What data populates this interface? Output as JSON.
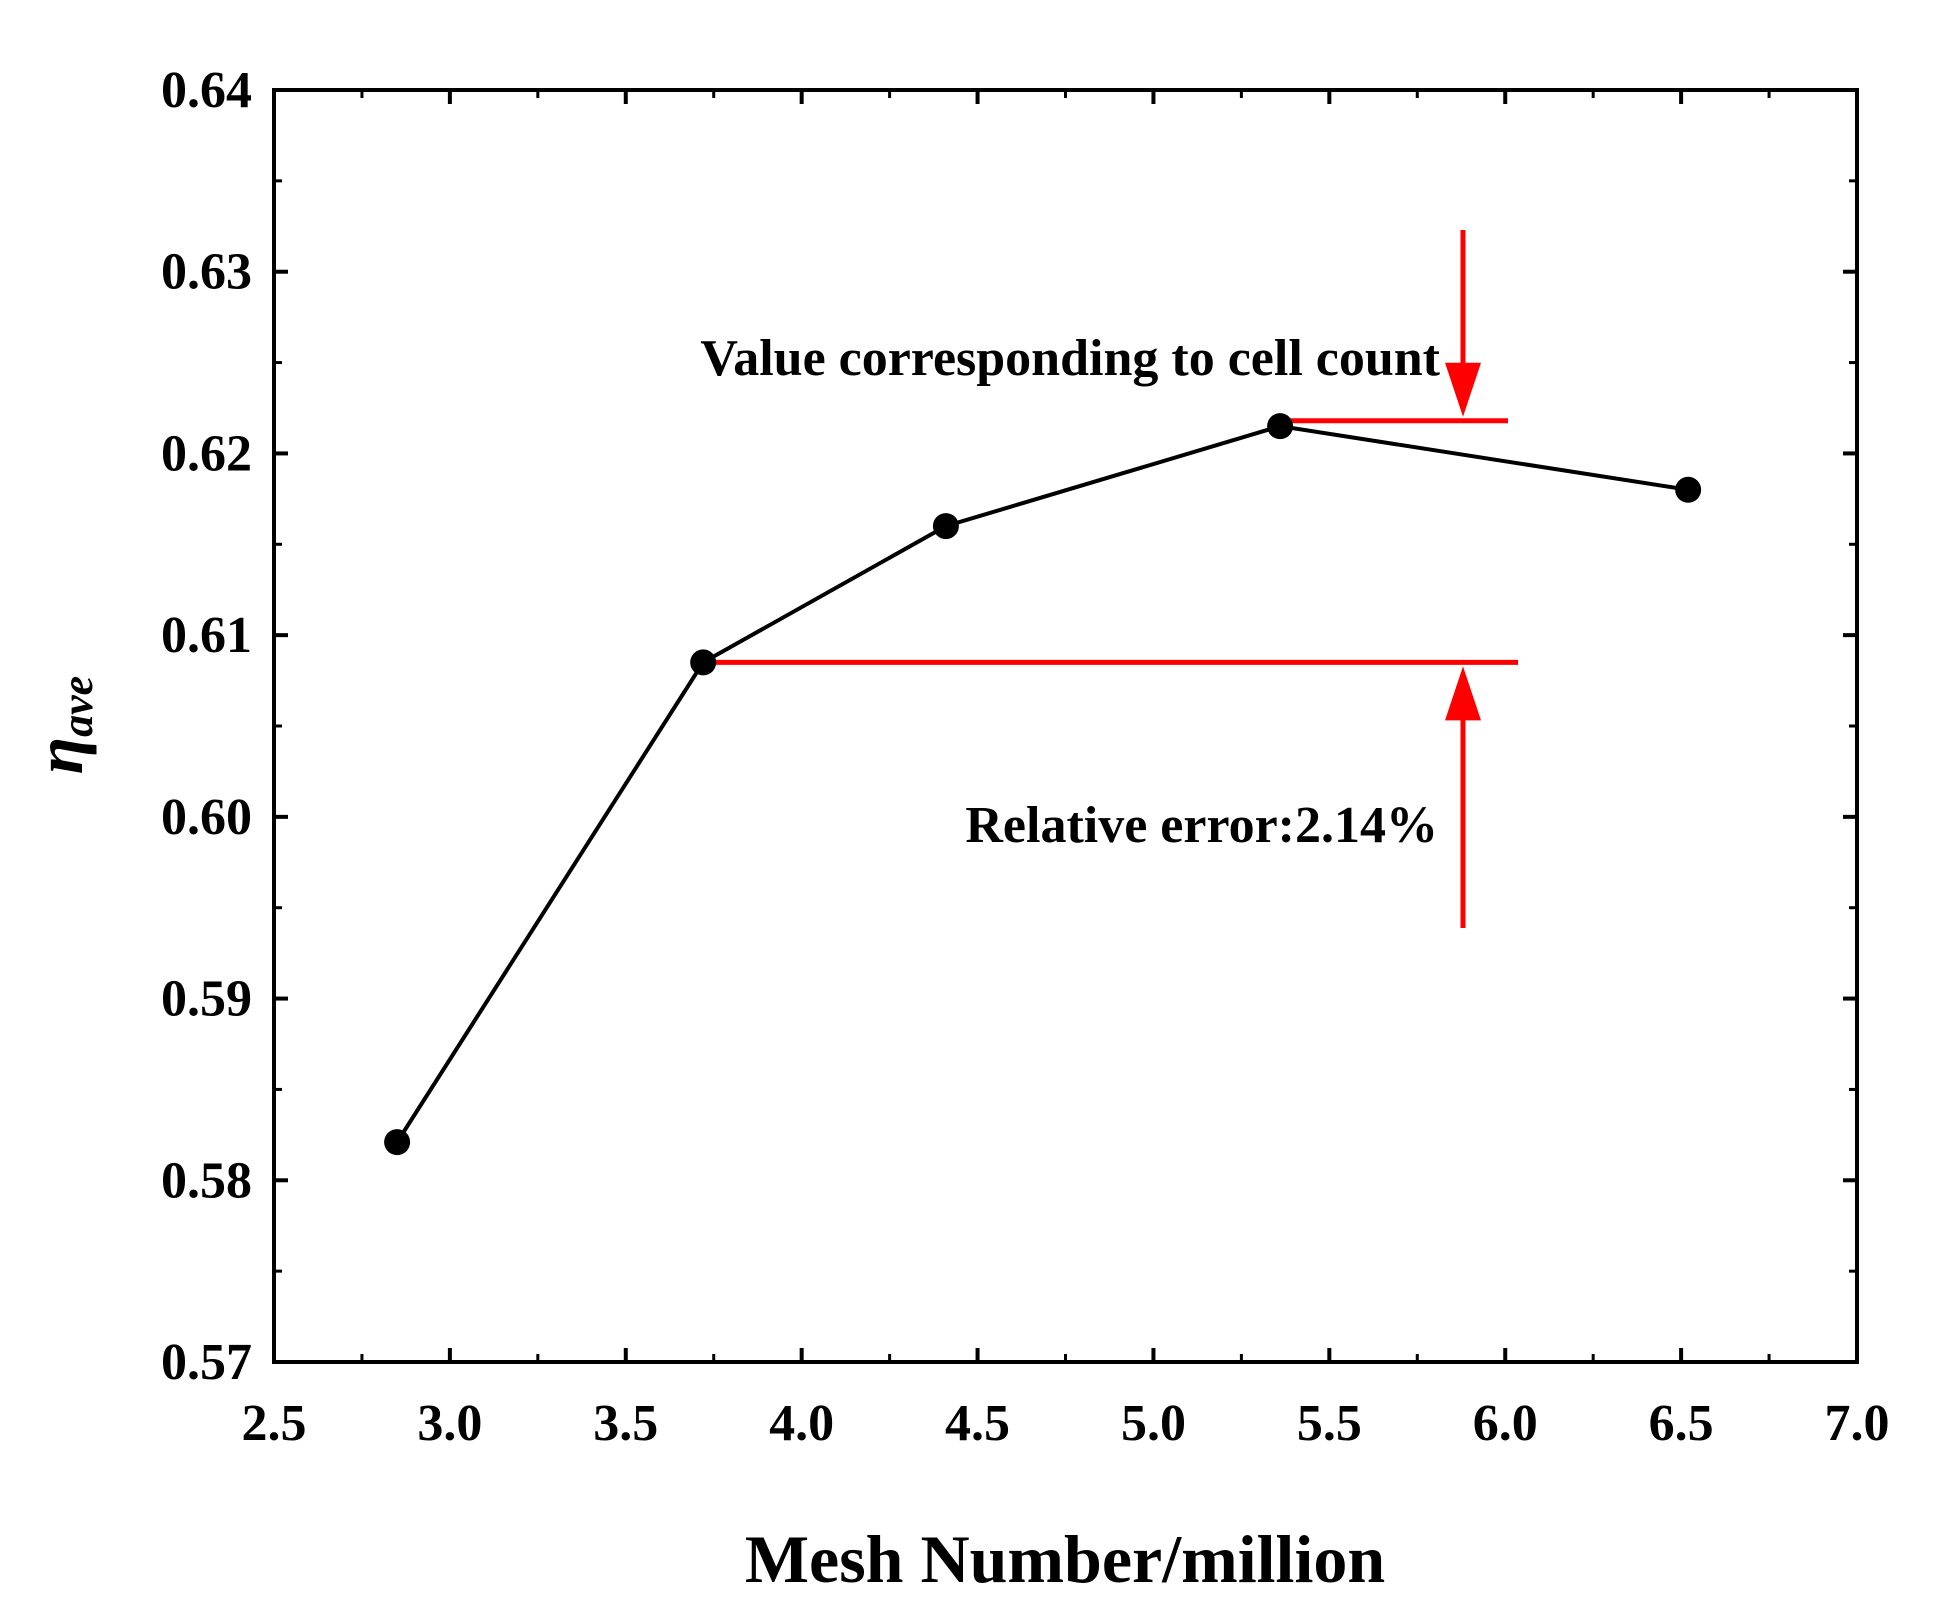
{
  "chart_data": {
    "type": "line",
    "title": "",
    "xlabel": "Mesh Number/million",
    "ylabel_symbol": "η",
    "ylabel_subscript": "ave",
    "xlim": [
      2.5,
      7.0
    ],
    "ylim": [
      0.57,
      0.64
    ],
    "x_ticks": [
      2.5,
      3.0,
      3.5,
      4.0,
      4.5,
      5.0,
      5.5,
      6.0,
      6.5,
      7.0
    ],
    "x_tick_labels": [
      "2.5",
      "3.0",
      "3.5",
      "4.0",
      "4.5",
      "5.0",
      "5.5",
      "6.0",
      "6.5",
      "7.0"
    ],
    "y_ticks": [
      0.57,
      0.58,
      0.59,
      0.6,
      0.61,
      0.62,
      0.63,
      0.64
    ],
    "y_tick_labels": [
      "0.57",
      "0.58",
      "0.59",
      "0.60",
      "0.61",
      "0.62",
      "0.63",
      "0.64"
    ],
    "grid": false,
    "series": [
      {
        "name": "η_ave",
        "color": "#000000",
        "marker": "circle",
        "x": [
          2.85,
          3.72,
          4.41,
          5.36,
          6.52
        ],
        "y": [
          0.5821,
          0.6085,
          0.616,
          0.6215,
          0.618
        ]
      }
    ],
    "annotations": {
      "color": "#ff0000",
      "top_label": "Value corresponding to cell count",
      "bottom_label": "Relative error:2.14%",
      "upper_ref_y": 0.6218,
      "lower_ref_y": 0.6085,
      "arrow_x": 5.88
    }
  }
}
